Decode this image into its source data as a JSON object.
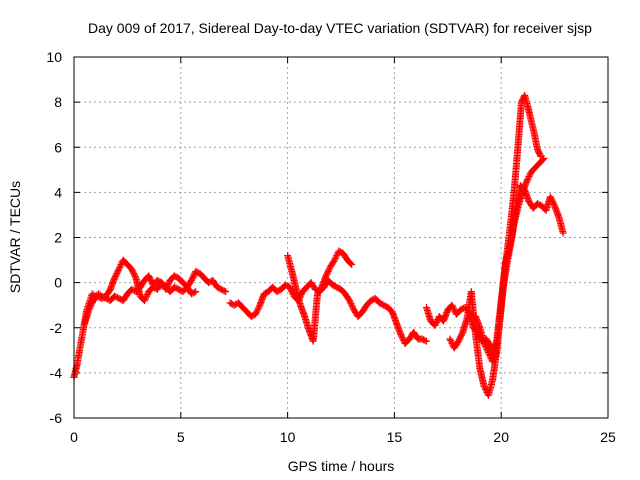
{
  "chart_data": {
    "type": "scatter",
    "title": "Day 009 of 2017, Sidereal Day-to-day VTEC variation (SDTVAR) for receiver sjsp",
    "xlabel": "GPS time / hours",
    "ylabel": "SDTVAR / TECUs",
    "xlim": [
      0,
      25
    ],
    "ylim": [
      -6,
      10
    ],
    "xticks": [
      0,
      5,
      10,
      15,
      20,
      25
    ],
    "yticks": [
      -6,
      -4,
      -2,
      0,
      2,
      4,
      6,
      8,
      10
    ],
    "x_tick_labels": [
      "0",
      "5",
      "10",
      "15",
      "20",
      "25"
    ],
    "y_tick_labels": [
      "-6",
      "-4",
      "-2",
      "0",
      "2",
      "4",
      "6",
      "8",
      "10"
    ],
    "grid": true,
    "legend": "none",
    "marker": "plus",
    "color": "#ff0000",
    "series": [
      {
        "x": [
          0.0,
          0.15,
          0.3,
          0.45,
          0.6,
          0.75,
          0.85,
          1.0,
          1.15,
          1.3,
          1.5,
          1.7,
          1.9,
          2.1,
          2.3,
          2.5,
          2.7,
          2.9,
          3.1,
          3.3,
          3.5,
          3.7,
          3.9,
          4.1,
          4.3,
          4.5,
          4.7,
          4.9,
          5.1,
          5.3,
          5.5,
          5.7,
          5.9,
          6.1,
          6.3,
          6.5,
          6.7,
          6.9,
          7.1
        ],
        "y": [
          -4.2,
          -3.6,
          -2.8,
          -2.0,
          -1.2,
          -0.8,
          -0.5,
          -0.6,
          -0.5,
          -0.6,
          -0.7,
          -0.8,
          -0.6,
          -0.7,
          -0.8,
          -0.5,
          -0.3,
          -0.4,
          -0.2,
          0.1,
          0.3,
          -0.1,
          0.1,
          0.0,
          -0.2,
          -0.4,
          -0.2,
          -0.3,
          -0.4,
          -0.2,
          0.1,
          0.5,
          0.4,
          0.2,
          0.0,
          0.1,
          -0.2,
          -0.3,
          -0.4
        ]
      },
      {
        "x": [
          0.5,
          0.7,
          0.9,
          1.1,
          1.3,
          1.5,
          1.7,
          1.9,
          2.1,
          2.3,
          2.5,
          2.7,
          2.9,
          3.1,
          3.3,
          3.5,
          3.7,
          3.9,
          4.1,
          4.3,
          4.5,
          4.7,
          4.9,
          5.1,
          5.3,
          5.5,
          5.7
        ],
        "y": [
          -1.8,
          -1.2,
          -0.8,
          -0.6,
          -0.7,
          -0.6,
          -0.3,
          0.2,
          0.6,
          1.0,
          0.8,
          0.6,
          0.2,
          -0.6,
          -0.8,
          -0.4,
          -0.2,
          -0.3,
          0.0,
          -0.3,
          0.1,
          0.3,
          0.2,
          0.0,
          -0.2,
          -0.5,
          -0.4
        ]
      },
      {
        "x": [
          7.3,
          7.5,
          7.7,
          7.9,
          8.1,
          8.3,
          8.5,
          8.7,
          8.9,
          9.1,
          9.3,
          9.5,
          9.7,
          9.9,
          10.1,
          10.3,
          10.5,
          10.7,
          10.9,
          11.1,
          11.3,
          11.5,
          11.7,
          11.9,
          12.1,
          12.3,
          12.5,
          12.7,
          12.9,
          13.1,
          13.3,
          13.5,
          13.7,
          13.9,
          14.1,
          14.3,
          14.5,
          14.7,
          14.9,
          15.1,
          15.3,
          15.5,
          15.7,
          15.9,
          16.1,
          16.3,
          16.5
        ],
        "y": [
          -0.9,
          -1.0,
          -0.9,
          -1.1,
          -1.3,
          -1.5,
          -1.4,
          -1.0,
          -0.5,
          -0.4,
          -0.2,
          -0.4,
          -0.3,
          -0.1,
          -0.2,
          -0.6,
          -0.8,
          -0.4,
          -0.2,
          0.0,
          -0.3,
          -0.4,
          -0.2,
          0.1,
          -0.1,
          -0.2,
          -0.3,
          -0.5,
          -0.8,
          -1.2,
          -1.5,
          -1.3,
          -1.0,
          -0.8,
          -0.7,
          -0.9,
          -1.0,
          -1.1,
          -1.3,
          -1.8,
          -2.3,
          -2.7,
          -2.5,
          -2.2,
          -2.5,
          -2.5,
          -2.6
        ]
      },
      {
        "x": [
          10.0,
          10.2,
          10.4,
          10.6,
          10.8,
          11.0,
          11.2,
          11.4,
          11.6,
          11.8,
          12.0,
          12.2,
          12.4,
          12.6,
          12.8,
          13.0
        ],
        "y": [
          1.2,
          0.5,
          -0.3,
          -1.0,
          -1.5,
          -2.1,
          -2.6,
          -0.5,
          -0.2,
          0.3,
          0.7,
          1.0,
          1.4,
          1.3,
          1.0,
          0.8
        ]
      },
      {
        "x": [
          16.5,
          16.7,
          16.9,
          17.1,
          17.3,
          17.5,
          17.7,
          17.9,
          18.1,
          18.3,
          18.5,
          18.7,
          18.9,
          19.1,
          19.3,
          19.5,
          19.7,
          19.9,
          20.1,
          20.3,
          20.5,
          20.7,
          20.9,
          21.1,
          21.3,
          21.5,
          21.7,
          21.9,
          22.1,
          22.3,
          22.5,
          22.7,
          22.9
        ],
        "y": [
          -1.1,
          -1.7,
          -1.9,
          -1.5,
          -1.7,
          -1.2,
          -1.0,
          -1.4,
          -1.2,
          -1.1,
          -1.3,
          -2.0,
          -2.2,
          -2.6,
          -2.5,
          -2.8,
          -3.4,
          -2.0,
          -0.2,
          1.0,
          2.0,
          3.3,
          4.3,
          4.1,
          3.6,
          3.3,
          3.5,
          3.4,
          3.2,
          3.8,
          3.4,
          2.9,
          2.2
        ]
      },
      {
        "x": [
          17.6,
          17.8,
          18.0,
          18.2,
          18.4,
          18.6,
          18.8,
          19.0,
          19.2,
          19.4,
          19.6,
          19.8,
          20.0,
          20.2,
          20.4,
          20.6,
          20.8,
          21.0,
          21.2,
          21.4,
          21.6,
          21.8,
          22.0
        ],
        "y": [
          -2.5,
          -2.9,
          -2.6,
          -2.2,
          -1.6,
          -0.4,
          -2.3,
          -3.8,
          -4.6,
          -5.0,
          -4.3,
          -3.0,
          -1.0,
          0.9,
          1.6,
          2.6,
          3.4,
          4.0,
          4.5,
          4.9,
          5.1,
          5.3,
          5.5
        ]
      },
      {
        "x": [
          18.8,
          19.0,
          19.2,
          19.4,
          19.6,
          19.8,
          20.0,
          20.2,
          20.4,
          20.6,
          20.8,
          20.95,
          21.1,
          21.25,
          21.4,
          21.55,
          21.7,
          21.85
        ],
        "y": [
          -1.5,
          -2.0,
          -2.7,
          -3.1,
          -3.5,
          -2.5,
          -0.8,
          0.8,
          2.3,
          4.0,
          6.2,
          8.0,
          8.3,
          7.8,
          7.2,
          6.6,
          5.9,
          5.6
        ]
      }
    ]
  }
}
